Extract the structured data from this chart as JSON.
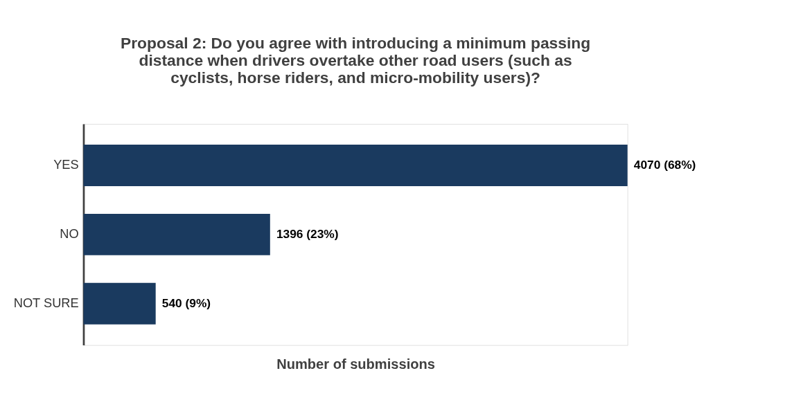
{
  "chart_data": {
    "type": "bar",
    "orientation": "horizontal",
    "title": "Proposal 2: Do you agree with introducing a minimum passing distance when drivers overtake other road users (such as cyclists, horse riders, and micro-mobility users)?",
    "xlabel": "Number of submissions",
    "categories": [
      "YES",
      "NO",
      "NOT SURE"
    ],
    "values": [
      4070,
      1396,
      540
    ],
    "value_labels": [
      "4070 (68%)",
      "1396 (23%)",
      "540 (9%)"
    ],
    "color": "#1a3a5f",
    "grid": false
  }
}
